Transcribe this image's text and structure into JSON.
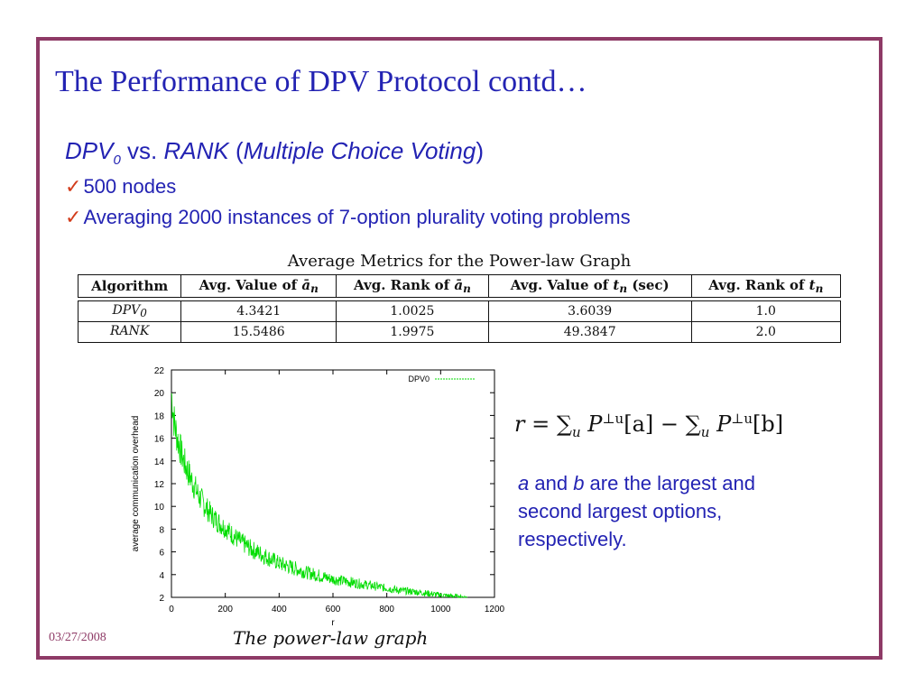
{
  "slide": {
    "title": "The Performance of DPV Protocol contd…",
    "subtitle": {
      "dpv": "DPV",
      "dpv_sub": "0",
      "vs": " vs. ",
      "rank": "RANK",
      "open_paren": " (",
      "multiple": "Multiple Choice Voting",
      "close_paren": ")"
    },
    "bullets": [
      {
        "mark": "✓",
        "text": "500 nodes"
      },
      {
        "mark": "✓",
        "text": "Averaging 2000 instances of 7-option plurality voting problems"
      }
    ],
    "table": {
      "caption": "Average Metrics for the Power-law Graph",
      "headers": {
        "algorithm": "Algorithm",
        "avg_value_a": "Avg. Value of ",
        "avg_rank_a": "Avg. Rank of ",
        "avg_value_t": "Avg. Value of ",
        "avg_value_t_unit": " (sec)",
        "avg_rank_t": "Avg. Rank of ",
        "a_symbol": "ā",
        "a_sub": "n",
        "t_symbol": "t",
        "t_sub": "n"
      },
      "rows": [
        {
          "alg": "DPV",
          "alg_sub": "0",
          "v1": "4.3421",
          "v2": "1.0025",
          "v3": "3.6039",
          "v4": "1.0"
        },
        {
          "alg": "RANK",
          "alg_sub": "",
          "v1": "15.5486",
          "v2": "1.9975",
          "v3": "49.3847",
          "v4": "2.0"
        }
      ]
    },
    "formula": {
      "lhs": "r",
      "eq": " = ",
      "sum1": "∑",
      "sub_u": "u",
      "p": " P",
      "sup": "⊥u",
      "a": "[a]",
      "minus": " − ",
      "sum2": "∑",
      "p2": " P",
      "b": "[b]"
    },
    "note": {
      "a": "a",
      "and": " and ",
      "b": "b",
      "rest": " are the largest and second largest options, respectively."
    },
    "date": "03/27/2008",
    "figure_caption": "The power-law graph"
  },
  "chart_data": {
    "type": "line",
    "xlabel": "r",
    "ylabel": "average communication overhead",
    "xlim": [
      0,
      1200
    ],
    "ylim": [
      2,
      22
    ],
    "xticks": [
      "0",
      "200",
      "400",
      "600",
      "800",
      "1000",
      "1200"
    ],
    "yticks": [
      "2",
      "4",
      "6",
      "8",
      "10",
      "12",
      "14",
      "16",
      "18",
      "20",
      "22"
    ],
    "legend": "top-right",
    "grid": false,
    "color": "#00dd00",
    "series": [
      {
        "name": "DPV0",
        "x": [
          0,
          10,
          20,
          30,
          40,
          50,
          75,
          100,
          125,
          150,
          175,
          200,
          250,
          300,
          350,
          400,
          450,
          500,
          550,
          600,
          650,
          700,
          750,
          800,
          850,
          900,
          950,
          1000,
          1050,
          1100
        ],
        "y": [
          20.0,
          17.5,
          16.2,
          15.3,
          14.4,
          13.7,
          12.3,
          11.0,
          10.0,
          9.2,
          8.6,
          8.1,
          7.0,
          6.2,
          5.6,
          5.0,
          4.6,
          4.2,
          3.9,
          3.6,
          3.4,
          3.2,
          3.0,
          2.8,
          2.6,
          2.5,
          2.35,
          2.2,
          2.1,
          2.0
        ],
        "noise": [
          2.0,
          1.8,
          1.6,
          1.5,
          1.4,
          1.4,
          1.3,
          1.2,
          1.1,
          1.0,
          1.0,
          0.9,
          0.9,
          0.8,
          0.8,
          0.7,
          0.7,
          0.6,
          0.6,
          0.5,
          0.5,
          0.45,
          0.4,
          0.35,
          0.35,
          0.3,
          0.3,
          0.25,
          0.2,
          0.15
        ]
      }
    ]
  }
}
